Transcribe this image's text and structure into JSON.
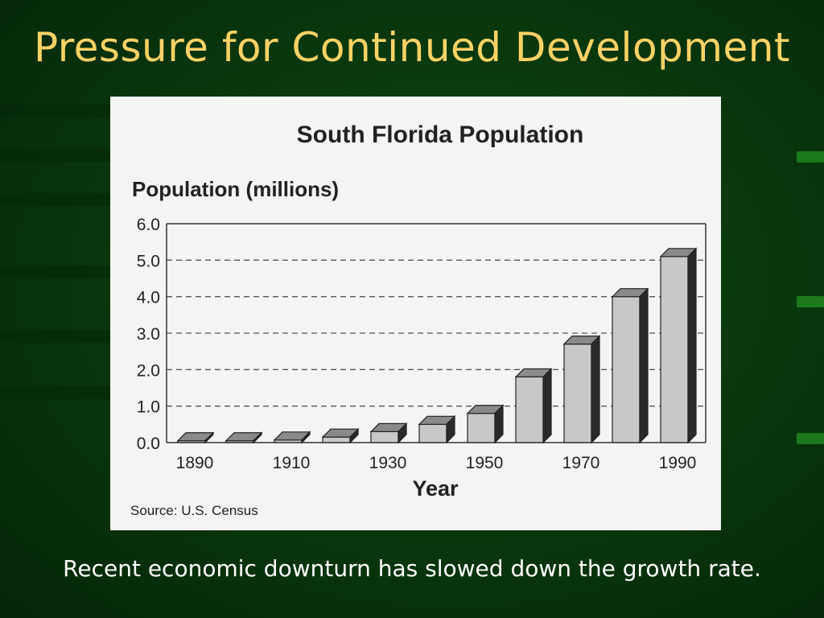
{
  "slide": {
    "title": "Pressure for Continued Development",
    "caption": "Recent economic downturn has slowed down the growth rate.",
    "colors": {
      "background": "#0a3a0d",
      "title": "#ffd266",
      "caption": "#ffffff",
      "panel": "#f4f4f2"
    }
  },
  "chart_data": {
    "type": "bar",
    "title": "South Florida Population",
    "ylabel": "Population (millions)",
    "xlabel": "Year",
    "source": "Source:  U.S. Census",
    "categories": [
      "1890",
      "1900",
      "1910",
      "1920",
      "1930",
      "1940",
      "1950",
      "1960",
      "1970",
      "1980",
      "1990"
    ],
    "x_tick_labels": [
      "1890",
      "",
      "1910",
      "",
      "1930",
      "",
      "1950",
      "",
      "1970",
      "",
      "1990"
    ],
    "values": [
      0.05,
      0.05,
      0.07,
      0.15,
      0.3,
      0.5,
      0.8,
      1.8,
      2.7,
      4.0,
      5.1
    ],
    "ylim": [
      0,
      6
    ],
    "y_ticks": [
      "0.0",
      "1.0",
      "2.0",
      "3.0",
      "4.0",
      "5.0",
      "6.0"
    ],
    "grid": true
  }
}
